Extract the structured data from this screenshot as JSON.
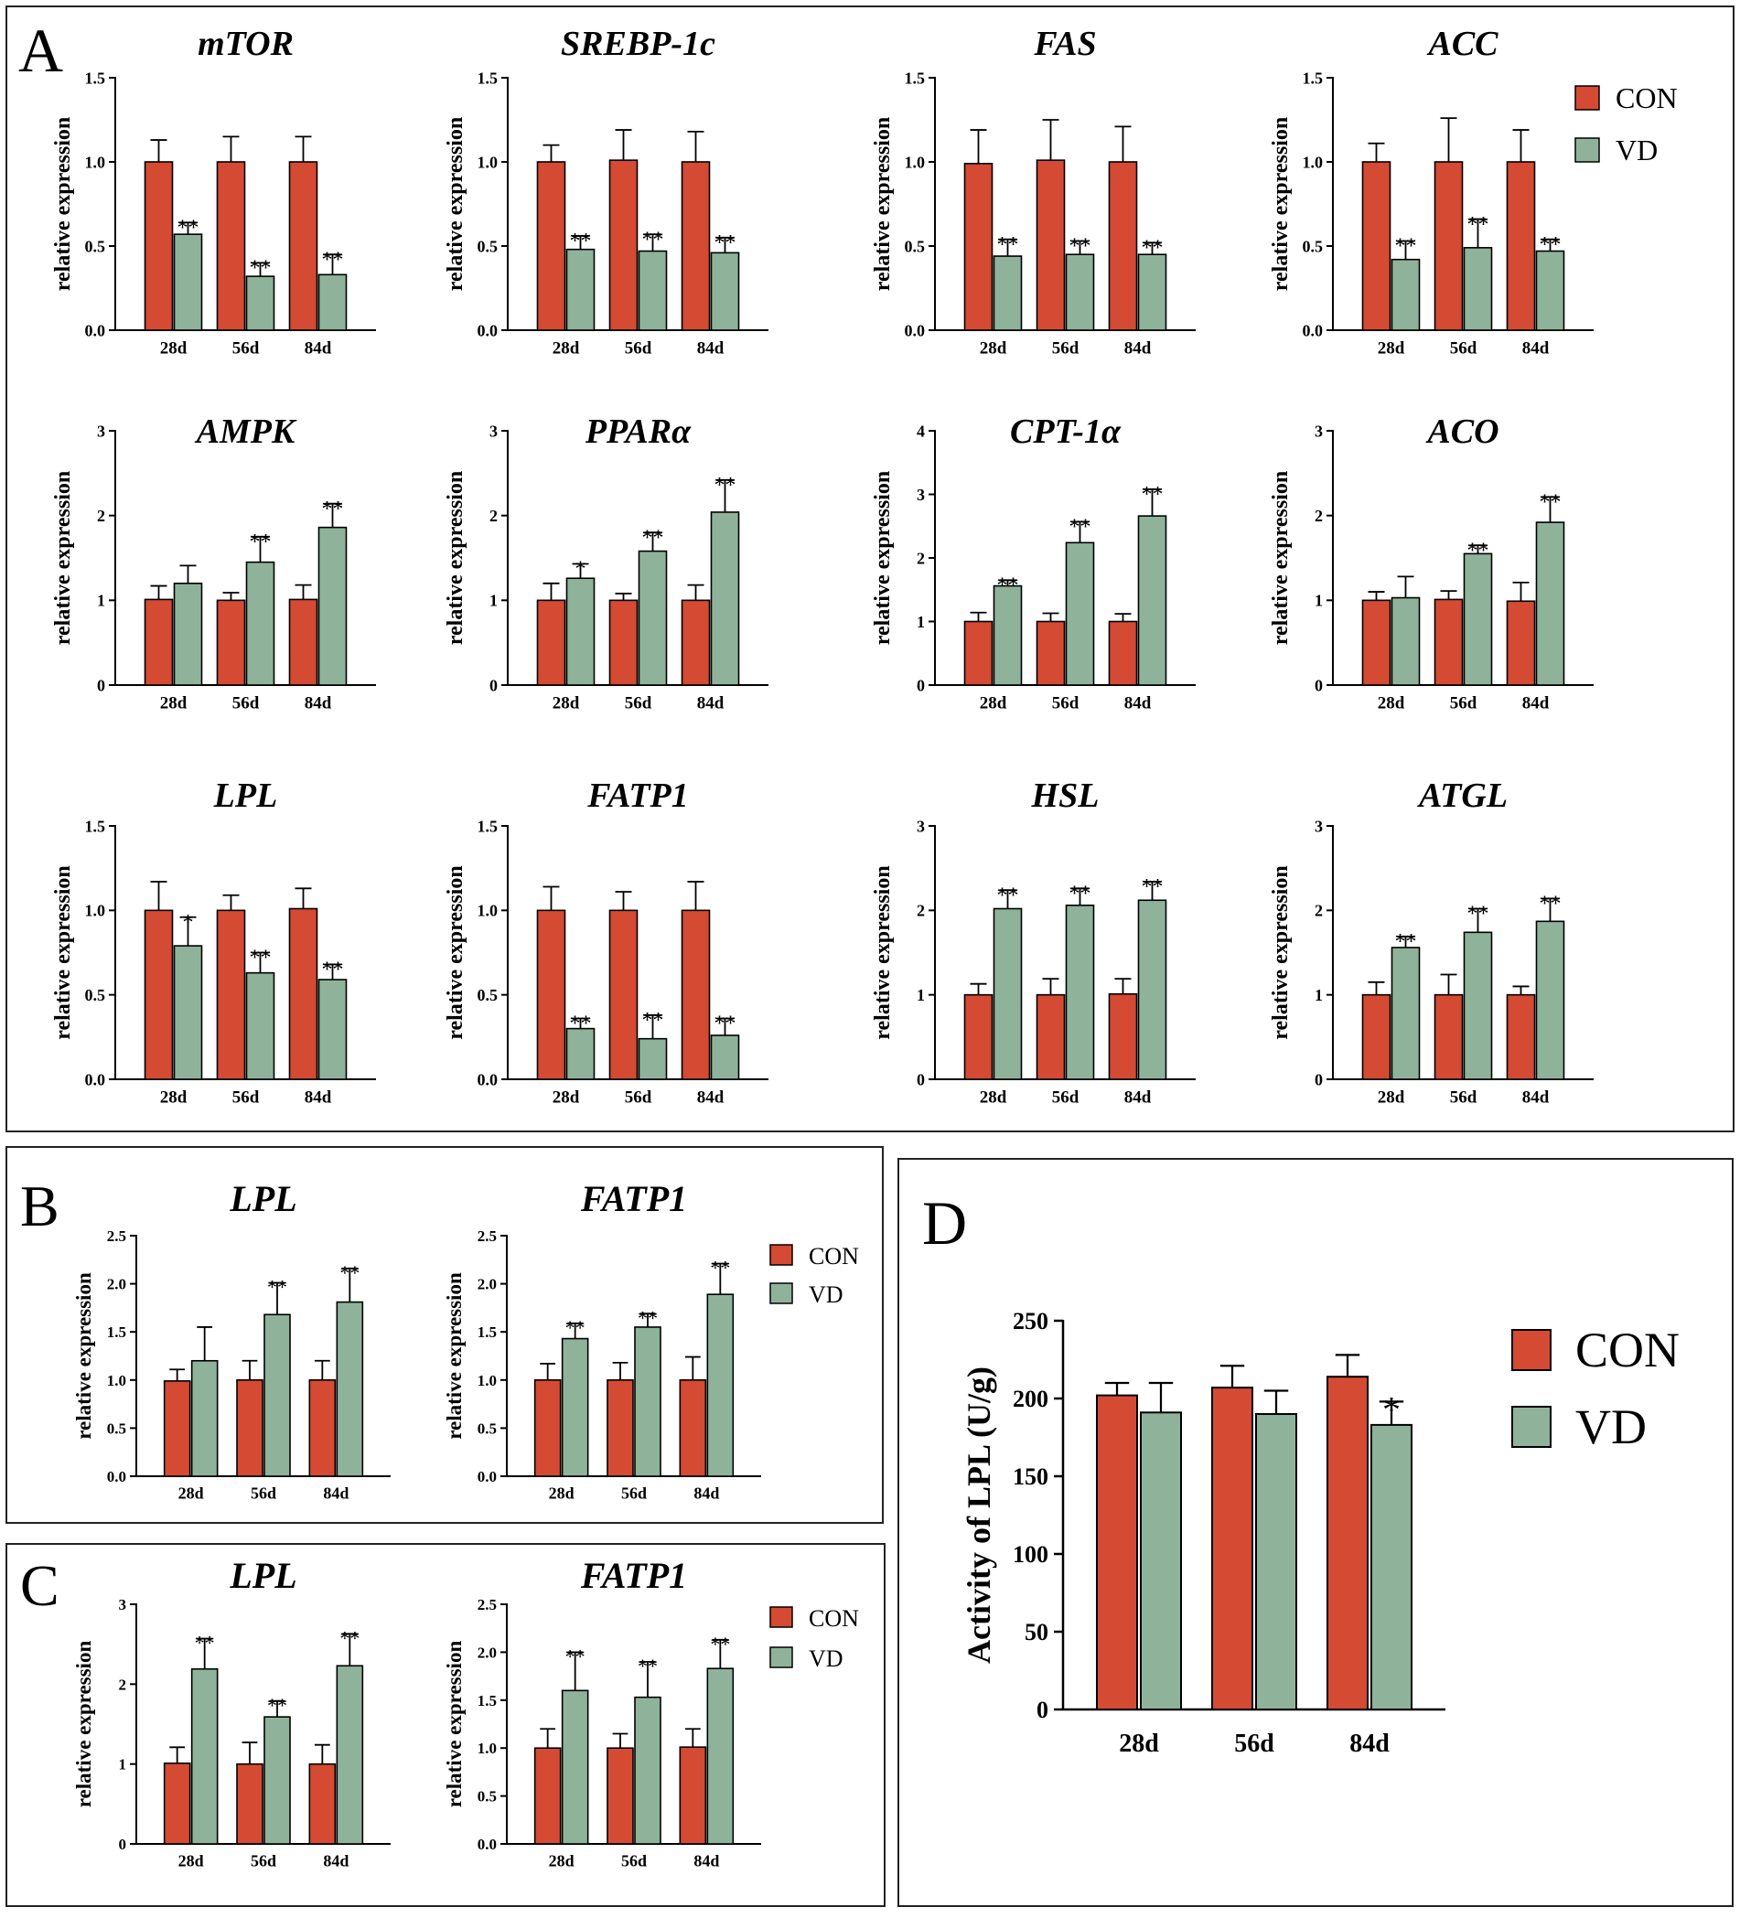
{
  "colors": {
    "con": "#d44a33",
    "vd": "#8fb39a",
    "axis": "#000000",
    "frame": "#222222"
  },
  "legend": {
    "con": "CON",
    "vd": "VD"
  },
  "ylabel": "relative expression",
  "panels": [
    {
      "letter": "A",
      "charts": [
        "mTOR",
        "SREBP-1c",
        "FAS",
        "ACC",
        "AMPK",
        "PPARα",
        "CPT-1α",
        "ACO",
        "LPL",
        "FATP1",
        "HSL",
        "ATGL"
      ]
    },
    {
      "letter": "B",
      "charts": [
        "LPL",
        "FATP1"
      ]
    },
    {
      "letter": "C",
      "charts": [
        "LPL",
        "FATP1"
      ]
    },
    {
      "letter": "D",
      "charts": [
        "Activity of LPL"
      ]
    }
  ],
  "chart_data": [
    {
      "panel": "A",
      "title": "mTOR",
      "type": "bar",
      "categories": [
        "28d",
        "56d",
        "84d"
      ],
      "ylabel": "relative expression",
      "ylim": [
        0,
        1.5
      ],
      "yticks": [
        "0.0",
        "0.5",
        "1.0",
        "1.5"
      ],
      "series": [
        {
          "name": "CON",
          "values": [
            1.0,
            1.0,
            1.0
          ],
          "errors": [
            0.13,
            0.15,
            0.15
          ],
          "marks": [
            "",
            "",
            ""
          ]
        },
        {
          "name": "VD",
          "values": [
            0.57,
            0.32,
            0.33
          ],
          "errors": [
            0.07,
            0.08,
            0.12
          ],
          "marks": [
            "**",
            "**",
            "**"
          ]
        }
      ]
    },
    {
      "panel": "A",
      "title": "SREBP-1c",
      "type": "bar",
      "categories": [
        "28d",
        "56d",
        "84d"
      ],
      "ylabel": "relative expression",
      "ylim": [
        0,
        1.5
      ],
      "yticks": [
        "0.0",
        "0.5",
        "1.0",
        "1.5"
      ],
      "series": [
        {
          "name": "CON",
          "values": [
            1.0,
            1.01,
            1.0
          ],
          "errors": [
            0.1,
            0.18,
            0.18
          ],
          "marks": [
            "",
            "",
            ""
          ]
        },
        {
          "name": "VD",
          "values": [
            0.48,
            0.47,
            0.46
          ],
          "errors": [
            0.08,
            0.1,
            0.09
          ],
          "marks": [
            "**",
            "**",
            "**"
          ]
        }
      ]
    },
    {
      "panel": "A",
      "title": "FAS",
      "type": "bar",
      "categories": [
        "28d",
        "56d",
        "84d"
      ],
      "ylabel": "relative expression",
      "ylim": [
        0,
        1.5
      ],
      "yticks": [
        "0.0",
        "0.5",
        "1.0",
        "1.5"
      ],
      "series": [
        {
          "name": "CON",
          "values": [
            0.99,
            1.01,
            1.0
          ],
          "errors": [
            0.2,
            0.24,
            0.21
          ],
          "marks": [
            "",
            "",
            ""
          ]
        },
        {
          "name": "VD",
          "values": [
            0.44,
            0.45,
            0.45
          ],
          "errors": [
            0.1,
            0.08,
            0.07
          ],
          "marks": [
            "**",
            "**",
            "**"
          ]
        }
      ]
    },
    {
      "panel": "A",
      "title": "ACC",
      "type": "bar",
      "categories": [
        "28d",
        "56d",
        "84d"
      ],
      "ylabel": "relative expression",
      "ylim": [
        0,
        1.5
      ],
      "yticks": [
        "0.0",
        "0.5",
        "1.0",
        "1.5"
      ],
      "series": [
        {
          "name": "CON",
          "values": [
            1.0,
            1.0,
            1.0
          ],
          "errors": [
            0.11,
            0.26,
            0.19
          ],
          "marks": [
            "",
            "",
            ""
          ]
        },
        {
          "name": "VD",
          "values": [
            0.42,
            0.49,
            0.47
          ],
          "errors": [
            0.11,
            0.17,
            0.07
          ],
          "marks": [
            "**",
            "**",
            "**"
          ]
        }
      ]
    },
    {
      "panel": "A",
      "title": "AMPK",
      "type": "bar",
      "categories": [
        "28d",
        "56d",
        "84d"
      ],
      "ylabel": "relative expression",
      "ylim": [
        0,
        3
      ],
      "yticks": [
        "0",
        "1",
        "2",
        "3"
      ],
      "series": [
        {
          "name": "CON",
          "values": [
            1.01,
            1.0,
            1.01
          ],
          "errors": [
            0.16,
            0.09,
            0.17
          ],
          "marks": [
            "",
            "",
            ""
          ]
        },
        {
          "name": "VD",
          "values": [
            1.2,
            1.45,
            1.86
          ],
          "errors": [
            0.21,
            0.3,
            0.28
          ],
          "marks": [
            "",
            "**",
            "**"
          ]
        }
      ]
    },
    {
      "panel": "A",
      "title": "PPARα",
      "type": "bar",
      "categories": [
        "28d",
        "56d",
        "84d"
      ],
      "ylabel": "relative expression",
      "ylim": [
        0,
        3
      ],
      "yticks": [
        "0",
        "1",
        "2",
        "3"
      ],
      "series": [
        {
          "name": "CON",
          "values": [
            1.0,
            1.0,
            1.0
          ],
          "errors": [
            0.2,
            0.08,
            0.18
          ],
          "marks": [
            "",
            "",
            ""
          ]
        },
        {
          "name": "VD",
          "values": [
            1.26,
            1.58,
            2.04
          ],
          "errors": [
            0.17,
            0.22,
            0.38
          ],
          "marks": [
            "*",
            "**",
            "**"
          ]
        }
      ]
    },
    {
      "panel": "A",
      "title": "CPT-1α",
      "type": "bar",
      "categories": [
        "28d",
        "56d",
        "84d"
      ],
      "ylabel": "relative expression",
      "ylim": [
        0,
        4
      ],
      "yticks": [
        "0",
        "1",
        "2",
        "3",
        "4"
      ],
      "series": [
        {
          "name": "CON",
          "values": [
            1.0,
            1.0,
            1.0
          ],
          "errors": [
            0.14,
            0.13,
            0.12
          ],
          "marks": [
            "",
            "",
            ""
          ]
        },
        {
          "name": "VD",
          "values": [
            1.56,
            2.24,
            2.66
          ],
          "errors": [
            0.09,
            0.33,
            0.42
          ],
          "marks": [
            "**",
            "**",
            "**"
          ]
        }
      ]
    },
    {
      "panel": "A",
      "title": "ACO",
      "type": "bar",
      "categories": [
        "28d",
        "56d",
        "84d"
      ],
      "ylabel": "relative expression",
      "ylim": [
        0,
        3
      ],
      "yticks": [
        "0",
        "1",
        "2",
        "3"
      ],
      "series": [
        {
          "name": "CON",
          "values": [
            1.0,
            1.01,
            0.99
          ],
          "errors": [
            0.1,
            0.1,
            0.22
          ],
          "marks": [
            "",
            "",
            ""
          ]
        },
        {
          "name": "VD",
          "values": [
            1.03,
            1.55,
            1.92
          ],
          "errors": [
            0.25,
            0.1,
            0.3
          ],
          "marks": [
            "",
            "**",
            "**"
          ]
        }
      ]
    },
    {
      "panel": "A",
      "title": "LPL",
      "type": "bar",
      "categories": [
        "28d",
        "56d",
        "84d"
      ],
      "ylabel": "relative expression",
      "ylim": [
        0,
        1.5
      ],
      "yticks": [
        "0.0",
        "0.5",
        "1.0",
        "1.5"
      ],
      "series": [
        {
          "name": "CON",
          "values": [
            1.0,
            1.0,
            1.01
          ],
          "errors": [
            0.17,
            0.09,
            0.12
          ],
          "marks": [
            "",
            "",
            ""
          ]
        },
        {
          "name": "VD",
          "values": [
            0.79,
            0.63,
            0.59
          ],
          "errors": [
            0.17,
            0.12,
            0.09
          ],
          "marks": [
            "*",
            "**",
            "**"
          ]
        }
      ]
    },
    {
      "panel": "A",
      "title": "FATP1",
      "type": "bar",
      "categories": [
        "28d",
        "56d",
        "84d"
      ],
      "ylabel": "relative expression",
      "ylim": [
        0,
        1.5
      ],
      "yticks": [
        "0.0",
        "0.5",
        "1.0",
        "1.5"
      ],
      "series": [
        {
          "name": "CON",
          "values": [
            1.0,
            1.0,
            1.0
          ],
          "errors": [
            0.14,
            0.11,
            0.17
          ],
          "marks": [
            "",
            "",
            ""
          ]
        },
        {
          "name": "VD",
          "values": [
            0.3,
            0.24,
            0.26
          ],
          "errors": [
            0.06,
            0.14,
            0.1
          ],
          "marks": [
            "**",
            "**",
            "**"
          ]
        }
      ]
    },
    {
      "panel": "A",
      "title": "HSL",
      "type": "bar",
      "categories": [
        "28d",
        "56d",
        "84d"
      ],
      "ylabel": "relative expression",
      "ylim": [
        0,
        3
      ],
      "yticks": [
        "0",
        "1",
        "2",
        "3"
      ],
      "series": [
        {
          "name": "CON",
          "values": [
            1.0,
            1.0,
            1.01
          ],
          "errors": [
            0.13,
            0.19,
            0.18
          ],
          "marks": [
            "",
            "",
            ""
          ]
        },
        {
          "name": "VD",
          "values": [
            2.02,
            2.06,
            2.12
          ],
          "errors": [
            0.22,
            0.2,
            0.22
          ],
          "marks": [
            "**",
            "**",
            "**"
          ]
        }
      ]
    },
    {
      "panel": "A",
      "title": "ATGL",
      "type": "bar",
      "categories": [
        "28d",
        "56d",
        "84d"
      ],
      "ylabel": "relative expression",
      "ylim": [
        0,
        3
      ],
      "yticks": [
        "0",
        "1",
        "2",
        "3"
      ],
      "series": [
        {
          "name": "CON",
          "values": [
            1.0,
            1.0,
            1.0
          ],
          "errors": [
            0.15,
            0.24,
            0.1
          ],
          "marks": [
            "",
            "",
            ""
          ]
        },
        {
          "name": "VD",
          "values": [
            1.56,
            1.74,
            1.87
          ],
          "errors": [
            0.13,
            0.28,
            0.27
          ],
          "marks": [
            "**",
            "**",
            "**"
          ]
        }
      ]
    },
    {
      "panel": "B",
      "title": "LPL",
      "type": "bar",
      "categories": [
        "28d",
        "56d",
        "84d"
      ],
      "ylabel": "relative expression",
      "ylim": [
        0,
        2.5
      ],
      "yticks": [
        "0.0",
        "0.5",
        "1.0",
        "1.5",
        "2.0",
        "2.5"
      ],
      "series": [
        {
          "name": "CON",
          "values": [
            0.99,
            1.0,
            1.0
          ],
          "errors": [
            0.12,
            0.2,
            0.2
          ],
          "marks": [
            "",
            "",
            ""
          ]
        },
        {
          "name": "VD",
          "values": [
            1.2,
            1.68,
            1.81
          ],
          "errors": [
            0.35,
            0.33,
            0.35
          ],
          "marks": [
            "",
            "**",
            "**"
          ]
        }
      ]
    },
    {
      "panel": "B",
      "title": "FATP1",
      "type": "bar",
      "categories": [
        "28d",
        "56d",
        "84d"
      ],
      "ylabel": "relative expression",
      "ylim": [
        0,
        2.5
      ],
      "yticks": [
        "0.0",
        "0.5",
        "1.0",
        "1.5",
        "2.0",
        "2.5"
      ],
      "series": [
        {
          "name": "CON",
          "values": [
            1.0,
            1.0,
            1.0
          ],
          "errors": [
            0.17,
            0.18,
            0.24
          ],
          "marks": [
            "",
            "",
            ""
          ]
        },
        {
          "name": "VD",
          "values": [
            1.43,
            1.55,
            1.89
          ],
          "errors": [
            0.16,
            0.14,
            0.32
          ],
          "marks": [
            "**",
            "**",
            "**"
          ]
        }
      ]
    },
    {
      "panel": "C",
      "title": "LPL",
      "type": "bar",
      "categories": [
        "28d",
        "56d",
        "84d"
      ],
      "ylabel": "relative expression",
      "ylim": [
        0,
        3
      ],
      "yticks": [
        "0",
        "1",
        "2",
        "3"
      ],
      "series": [
        {
          "name": "CON",
          "values": [
            1.01,
            1.0,
            1.0
          ],
          "errors": [
            0.2,
            0.27,
            0.24
          ],
          "marks": [
            "",
            "",
            ""
          ]
        },
        {
          "name": "VD",
          "values": [
            2.19,
            1.59,
            2.23
          ],
          "errors": [
            0.38,
            0.2,
            0.4
          ],
          "marks": [
            "**",
            "**",
            "**"
          ]
        }
      ]
    },
    {
      "panel": "C",
      "title": "FATP1",
      "type": "bar",
      "categories": [
        "28d",
        "56d",
        "84d"
      ],
      "ylabel": "relative expression",
      "ylim": [
        0,
        2.5
      ],
      "yticks": [
        "0.0",
        "0.5",
        "1.0",
        "1.5",
        "2.0",
        "2.5"
      ],
      "series": [
        {
          "name": "CON",
          "values": [
            1.0,
            1.0,
            1.01
          ],
          "errors": [
            0.2,
            0.15,
            0.19
          ],
          "marks": [
            "",
            "",
            ""
          ]
        },
        {
          "name": "VD",
          "values": [
            1.6,
            1.53,
            1.83
          ],
          "errors": [
            0.4,
            0.37,
            0.3
          ],
          "marks": [
            "**",
            "**",
            "**"
          ]
        }
      ]
    },
    {
      "panel": "D",
      "title": "",
      "type": "bar",
      "categories": [
        "28d",
        "56d",
        "84d"
      ],
      "ylabel": "Activity of LPL (U/g)",
      "ylim": [
        0,
        250
      ],
      "yticks": [
        "0",
        "50",
        "100",
        "150",
        "200",
        "250"
      ],
      "series": [
        {
          "name": "CON",
          "values": [
            202,
            207,
            214
          ],
          "errors": [
            8,
            14,
            14
          ],
          "marks": [
            "",
            "",
            ""
          ]
        },
        {
          "name": "VD",
          "values": [
            191,
            190,
            183
          ],
          "errors": [
            19,
            15,
            15
          ],
          "marks": [
            "",
            "",
            "*"
          ]
        }
      ]
    }
  ]
}
